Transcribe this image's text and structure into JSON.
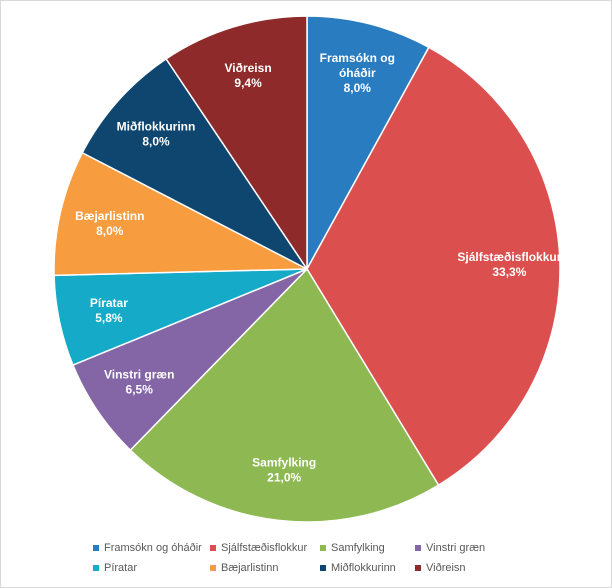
{
  "chart_data": {
    "type": "pie",
    "title": "",
    "legend_position": "bottom",
    "label_color": "#ffffff",
    "slices": [
      {
        "label": "Framsókn og óháðir",
        "value": 8.0,
        "value_label": "8,0%",
        "color": "#2a7cc0"
      },
      {
        "label": "Sjálfstæðisflokkur",
        "value": 33.3,
        "value_label": "33,3%",
        "color": "#dc4f4f"
      },
      {
        "label": "Samfylking",
        "value": 21.0,
        "value_label": "21,0%",
        "color": "#8db852"
      },
      {
        "label": "Vinstri græn",
        "value": 6.5,
        "value_label": "6,5%",
        "color": "#8465a5"
      },
      {
        "label": "Píratar",
        "value": 5.8,
        "value_label": "5,8%",
        "color": "#14aac8"
      },
      {
        "label": "Bæjarlistinn",
        "value": 8.0,
        "value_label": "8,0%",
        "color": "#f79c3f"
      },
      {
        "label": "Miðflokkurinn",
        "value": 8.0,
        "value_label": "8,0%",
        "color": "#0e4670"
      },
      {
        "label": "Viðreisn",
        "value": 9.4,
        "value_label": "9,4%",
        "color": "#8e2a2a"
      }
    ]
  }
}
